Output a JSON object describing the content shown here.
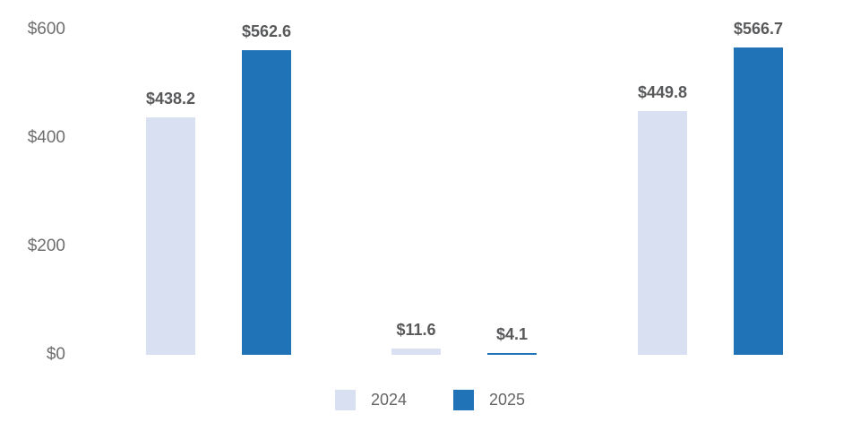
{
  "chart_data": {
    "type": "bar",
    "title": "",
    "orientation": "vertical",
    "grouped": true,
    "categories": [
      "",
      "",
      ""
    ],
    "series": [
      {
        "name": "2024",
        "color": "#d9e0f2",
        "values": [
          438.2,
          11.6,
          449.8
        ],
        "labels": [
          "$438.2",
          "$11.6",
          "$449.8"
        ]
      },
      {
        "name": "2025",
        "color": "#2173b8",
        "values": [
          562.6,
          4.1,
          566.7
        ],
        "labels": [
          "$562.6",
          "$4.1",
          "$566.7"
        ]
      }
    ],
    "y_axis": {
      "range": [
        0,
        600
      ],
      "ticks": [
        {
          "value": 600,
          "label": "$600"
        },
        {
          "value": 400,
          "label": "$400"
        },
        {
          "value": 200,
          "label": "$200"
        },
        {
          "value": 0,
          "label": "$0"
        }
      ]
    },
    "x_axis": {
      "labels_visible": false
    },
    "value_prefix": "$",
    "grid": false,
    "legend": {
      "position": "bottom-center",
      "entries": [
        {
          "label": "2024",
          "color": "#d9e0f2"
        },
        {
          "label": "2025",
          "color": "#2173b8"
        }
      ]
    }
  },
  "colors": {
    "background": "#ffffff",
    "series_2024": "#d9e0f2",
    "series_2025": "#2173b8",
    "data_label_text": "#58595b",
    "axis_tick_text": "#6e6e6e",
    "legend_text": "#666666"
  }
}
